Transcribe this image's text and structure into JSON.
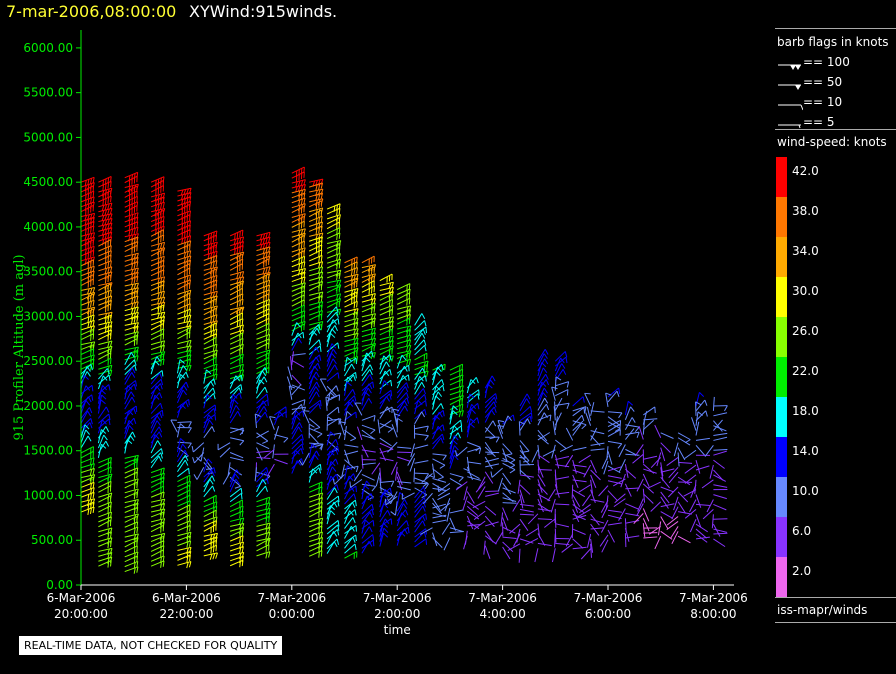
{
  "header": {
    "time": "7-mar-2006,08:00:00",
    "title": "XYWind:915winds."
  },
  "note": "REAL-TIME DATA, NOT CHECKED FOR QUALITY",
  "legend": {
    "flags_title": "barb flags in knots",
    "flags": [
      {
        "label": "== 100",
        "knots": 100
      },
      {
        "label": "== 50",
        "knots": 50
      },
      {
        "label": "== 10",
        "knots": 10
      },
      {
        "label": "== 5",
        "knots": 5
      }
    ],
    "speed_title": "wind-speed: knots",
    "speed_scale": [
      {
        "label": "42.0",
        "color": "#ff0000"
      },
      {
        "label": "38.0",
        "color": "#ff7700"
      },
      {
        "label": "34.0",
        "color": "#ffaa00"
      },
      {
        "label": "30.0",
        "color": "#ffff00"
      },
      {
        "label": "26.0",
        "color": "#88ff00"
      },
      {
        "label": "22.0",
        "color": "#00ee00"
      },
      {
        "label": "18.0",
        "color": "#00ffff"
      },
      {
        "label": "14.0",
        "color": "#0000ff"
      },
      {
        "label": "10.0",
        "color": "#6688ff"
      },
      {
        "label": "6.0",
        "color": "#8833ff"
      },
      {
        "label": "2.0",
        "color": "#ee66ee"
      }
    ],
    "source": "iss-mapr/winds"
  },
  "chart_data": {
    "type": "scatter",
    "ylabel": "915 Profiler Altitude (m agl)",
    "xlabel": "time",
    "ylim": [
      0,
      6200
    ],
    "yticks": [
      "0.00",
      "500.00",
      "1000.00",
      "1500.00",
      "2000.00",
      "2500.00",
      "3000.00",
      "3500.00",
      "4000.00",
      "4500.00",
      "5000.00",
      "5500.00",
      "6000.00"
    ],
    "xticks": [
      {
        "line1": "6-Mar-2006",
        "line2": "20:00:00",
        "hours": 0
      },
      {
        "line1": "6-Mar-2006",
        "line2": "22:00:00",
        "hours": 2
      },
      {
        "line1": "7-Mar-2006",
        "line2": "0:00:00",
        "hours": 4
      },
      {
        "line1": "7-Mar-2006",
        "line2": "2:00:00",
        "hours": 6
      },
      {
        "line1": "7-Mar-2006",
        "line2": "4:00:00",
        "hours": 8
      },
      {
        "line1": "7-Mar-2006",
        "line2": "6:00:00",
        "hours": 10
      },
      {
        "line1": "7-Mar-2006",
        "line2": "8:00:00",
        "hours": 12
      }
    ],
    "xlim_hours": [
      0,
      12.3
    ],
    "profiles": [
      {
        "hours": 0.0,
        "top": 4500,
        "bottom": 800,
        "prof": [
          [
            4500,
            44
          ],
          [
            3600,
            40
          ],
          [
            3000,
            32
          ],
          [
            2600,
            24
          ],
          [
            2200,
            16
          ],
          [
            1800,
            12
          ],
          [
            1400,
            22
          ],
          [
            1000,
            30
          ]
        ]
      },
      {
        "hours": 0.33,
        "top": 4500,
        "bottom": 200,
        "prof": [
          [
            4500,
            44
          ],
          [
            3500,
            38
          ],
          [
            2800,
            30
          ],
          [
            2400,
            22
          ],
          [
            2000,
            12
          ],
          [
            1500,
            18
          ],
          [
            1000,
            26
          ],
          [
            500,
            24
          ],
          [
            200,
            24
          ]
        ]
      },
      {
        "hours": 0.83,
        "top": 4550,
        "bottom": 150,
        "prof": [
          [
            4550,
            44
          ],
          [
            3500,
            38
          ],
          [
            2800,
            28
          ],
          [
            2300,
            16
          ],
          [
            1800,
            12
          ],
          [
            1300,
            24
          ],
          [
            600,
            26
          ],
          [
            150,
            26
          ]
        ]
      },
      {
        "hours": 1.33,
        "top": 4500,
        "bottom": 200,
        "prof": [
          [
            4500,
            44
          ],
          [
            3400,
            36
          ],
          [
            2700,
            26
          ],
          [
            2200,
            14
          ],
          [
            1700,
            12
          ],
          [
            1200,
            22
          ],
          [
            700,
            28
          ],
          [
            200,
            26
          ]
        ]
      },
      {
        "hours": 1.83,
        "top": 4400,
        "bottom": 200,
        "prof": [
          [
            4400,
            44
          ],
          [
            3300,
            36
          ],
          [
            2600,
            24
          ],
          [
            2100,
            14
          ],
          [
            1600,
            10
          ],
          [
            1100,
            22
          ],
          [
            600,
            26
          ],
          [
            200,
            30
          ]
        ]
      },
      {
        "hours": 2.33,
        "top": 3900,
        "bottom": 300,
        "prof": [
          [
            3900,
            42
          ],
          [
            3000,
            34
          ],
          [
            2400,
            22
          ],
          [
            1900,
            14
          ],
          [
            1400,
            10
          ],
          [
            1000,
            18
          ],
          [
            600,
            30
          ],
          [
            300,
            32
          ]
        ]
      },
      {
        "hours": 2.83,
        "top": 3900,
        "bottom": 200,
        "prof": [
          [
            3900,
            42
          ],
          [
            3000,
            32
          ],
          [
            2300,
            20
          ],
          [
            1800,
            12
          ],
          [
            1300,
            8
          ],
          [
            900,
            20
          ],
          [
            500,
            28
          ],
          [
            200,
            30
          ]
        ]
      },
      {
        "hours": 3.33,
        "top": 3900,
        "bottom": 300,
        "prof": [
          [
            3900,
            42
          ],
          [
            3000,
            30
          ],
          [
            2200,
            18
          ],
          [
            1800,
            12
          ],
          [
            1400,
            6
          ],
          [
            900,
            22
          ],
          [
            300,
            28
          ]
        ]
      },
      {
        "hours": 3.67,
        "top": 1900,
        "bottom": 1300,
        "prof": [
          [
            1900,
            14
          ],
          [
            1300,
            4
          ]
        ]
      },
      {
        "hours": 4.0,
        "top": 4600,
        "bottom": 1200,
        "prof": [
          [
            4600,
            42
          ],
          [
            3800,
            34
          ],
          [
            3200,
            26
          ],
          [
            2700,
            18
          ],
          [
            2500,
            6
          ],
          [
            1900,
            12
          ],
          [
            1200,
            14
          ]
        ]
      },
      {
        "hours": 4.33,
        "top": 4500,
        "bottom": 300,
        "prof": [
          [
            4500,
            40
          ],
          [
            3700,
            30
          ],
          [
            3000,
            22
          ],
          [
            2400,
            14
          ],
          [
            1900,
            12
          ],
          [
            1500,
            10
          ],
          [
            1000,
            24
          ],
          [
            300,
            26
          ]
        ]
      },
      {
        "hours": 4.67,
        "top": 4200,
        "bottom": 300,
        "prof": [
          [
            4200,
            30
          ],
          [
            3400,
            24
          ],
          [
            2600,
            16
          ],
          [
            2100,
            10
          ],
          [
            1600,
            12
          ],
          [
            1000,
            16
          ],
          [
            300,
            20
          ]
        ]
      },
      {
        "hours": 5.0,
        "top": 3600,
        "bottom": 300,
        "prof": [
          [
            3600,
            36
          ],
          [
            3000,
            28
          ],
          [
            2500,
            20
          ],
          [
            2000,
            14
          ],
          [
            1500,
            8
          ],
          [
            900,
            16
          ],
          [
            300,
            20
          ]
        ]
      },
      {
        "hours": 5.33,
        "top": 3600,
        "bottom": 350,
        "prof": [
          [
            3600,
            36
          ],
          [
            3000,
            26
          ],
          [
            2400,
            18
          ],
          [
            1900,
            12
          ],
          [
            1500,
            6
          ],
          [
            900,
            14
          ],
          [
            350,
            14
          ]
        ]
      },
      {
        "hours": 5.67,
        "top": 3400,
        "bottom": 400,
        "prof": [
          [
            3400,
            30
          ],
          [
            2800,
            24
          ],
          [
            2300,
            18
          ],
          [
            1800,
            10
          ],
          [
            1400,
            6
          ],
          [
            900,
            14
          ],
          [
            400,
            14
          ]
        ]
      },
      {
        "hours": 6.0,
        "top": 3300,
        "bottom": 400,
        "prof": [
          [
            3300,
            26
          ],
          [
            2600,
            22
          ],
          [
            2200,
            16
          ],
          [
            1700,
            10
          ],
          [
            1300,
            6
          ],
          [
            800,
            14
          ],
          [
            400,
            14
          ]
        ]
      },
      {
        "hours": 6.33,
        "top": 2900,
        "bottom": 400,
        "prof": [
          [
            2900,
            16
          ],
          [
            2400,
            22
          ],
          [
            2000,
            14
          ],
          [
            1500,
            8
          ],
          [
            1000,
            12
          ],
          [
            400,
            14
          ]
        ]
      },
      {
        "hours": 6.67,
        "top": 2400,
        "bottom": 500,
        "prof": [
          [
            2400,
            20
          ],
          [
            1900,
            16
          ],
          [
            1500,
            12
          ],
          [
            1000,
            8
          ],
          [
            500,
            10
          ]
        ]
      },
      {
        "hours": 7.0,
        "top": 2400,
        "bottom": 500,
        "prof": [
          [
            2400,
            22
          ],
          [
            1900,
            20
          ],
          [
            1400,
            14
          ],
          [
            1000,
            8
          ],
          [
            500,
            8
          ]
        ]
      },
      {
        "hours": 7.33,
        "top": 2200,
        "bottom": 500,
        "prof": [
          [
            2200,
            18
          ],
          [
            1800,
            14
          ],
          [
            1400,
            10
          ],
          [
            1000,
            6
          ],
          [
            500,
            6
          ]
        ]
      },
      {
        "hours": 7.67,
        "top": 2200,
        "bottom": 400,
        "prof": [
          [
            2200,
            14
          ],
          [
            1800,
            12
          ],
          [
            1300,
            8
          ],
          [
            900,
            6
          ],
          [
            400,
            6
          ]
        ]
      },
      {
        "hours": 8.0,
        "top": 1800,
        "bottom": 400,
        "prof": [
          [
            1800,
            12
          ],
          [
            1300,
            10
          ],
          [
            900,
            8
          ],
          [
            400,
            6
          ]
        ]
      },
      {
        "hours": 8.33,
        "top": 2000,
        "bottom": 400,
        "prof": [
          [
            2000,
            14
          ],
          [
            1500,
            10
          ],
          [
            1000,
            6
          ],
          [
            400,
            6
          ]
        ]
      },
      {
        "hours": 8.67,
        "top": 2500,
        "bottom": 400,
        "prof": [
          [
            2500,
            14
          ],
          [
            2000,
            12
          ],
          [
            1500,
            8
          ],
          [
            1000,
            6
          ],
          [
            400,
            6
          ]
        ]
      },
      {
        "hours": 9.0,
        "top": 2500,
        "bottom": 400,
        "prof": [
          [
            2500,
            14
          ],
          [
            2000,
            10
          ],
          [
            1500,
            8
          ],
          [
            1000,
            6
          ],
          [
            400,
            4
          ]
        ]
      },
      {
        "hours": 9.33,
        "top": 2000,
        "bottom": 400,
        "prof": [
          [
            2000,
            12
          ],
          [
            1500,
            8
          ],
          [
            1000,
            6
          ],
          [
            400,
            4
          ]
        ]
      },
      {
        "hours": 9.67,
        "top": 2000,
        "bottom": 400,
        "prof": [
          [
            2000,
            10
          ],
          [
            1500,
            8
          ],
          [
            1000,
            6
          ],
          [
            400,
            4
          ]
        ]
      },
      {
        "hours": 10.0,
        "top": 2100,
        "bottom": 500,
        "prof": [
          [
            2100,
            12
          ],
          [
            1600,
            10
          ],
          [
            1000,
            6
          ],
          [
            500,
            4
          ]
        ]
      },
      {
        "hours": 10.33,
        "top": 1900,
        "bottom": 500,
        "prof": [
          [
            1900,
            12
          ],
          [
            1400,
            8
          ],
          [
            900,
            6
          ],
          [
            500,
            4
          ]
        ]
      },
      {
        "hours": 10.67,
        "top": 1900,
        "bottom": 500,
        "prof": [
          [
            1900,
            10
          ],
          [
            1400,
            6
          ],
          [
            900,
            4
          ],
          [
            500,
            2
          ]
        ]
      },
      {
        "hours": 11.0,
        "top": 1700,
        "bottom": 500,
        "prof": [
          [
            1700,
            8
          ],
          [
            1200,
            6
          ],
          [
            800,
            4
          ],
          [
            500,
            2
          ]
        ]
      },
      {
        "hours": 11.33,
        "top": 1700,
        "bottom": 500,
        "prof": [
          [
            1700,
            10
          ],
          [
            1200,
            6
          ],
          [
            800,
            4
          ],
          [
            500,
            2
          ]
        ]
      },
      {
        "hours": 11.67,
        "top": 2000,
        "bottom": 500,
        "prof": [
          [
            2000,
            12
          ],
          [
            1500,
            8
          ],
          [
            1000,
            6
          ],
          [
            500,
            4
          ]
        ]
      },
      {
        "hours": 12.0,
        "top": 2000,
        "bottom": 500,
        "prof": [
          [
            2000,
            10
          ],
          [
            1500,
            8
          ],
          [
            1000,
            6
          ],
          [
            500,
            4
          ]
        ]
      }
    ]
  }
}
